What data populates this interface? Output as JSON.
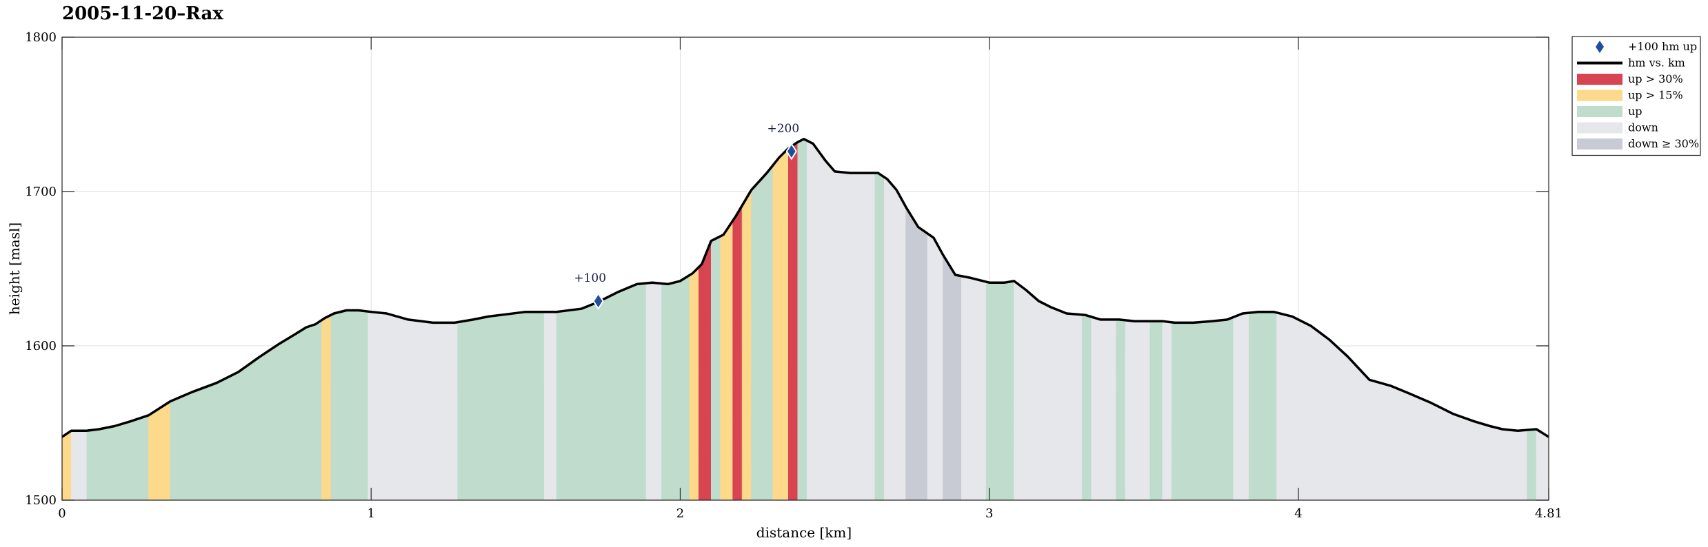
{
  "chart_data": {
    "type": "area",
    "title": "2005-11-20–Rax",
    "xlabel": "distance [km]",
    "ylabel": "height [masl]",
    "xlim": [
      0,
      4.81
    ],
    "ylim": [
      1500,
      1800
    ],
    "xticks": [
      0,
      1,
      2,
      3,
      4,
      4.81
    ],
    "xtick_labels": [
      "0",
      "1",
      "2",
      "3",
      "4",
      "4.81"
    ],
    "yticks": [
      1500,
      1600,
      1700,
      1800
    ],
    "ytick_labels": [
      "1500",
      "1600",
      "1700",
      "1800"
    ],
    "grid": true,
    "legend_position": "outside-top-right",
    "colors": {
      "line": "#000000",
      "marker": "#1f4e9e",
      "up_gt_30": "#d94452",
      "up_gt_15": "#fcd98b",
      "up": "#c0dccd",
      "down": "#e6e7eb",
      "down_ge_30": "#c8cbd3",
      "grid": "#dddddd"
    },
    "legend": [
      {
        "key": "marker",
        "label": "+100 hm up",
        "symbol": "diamond"
      },
      {
        "key": "line",
        "label": "hm vs. km",
        "symbol": "line"
      },
      {
        "key": "up_gt_30",
        "label": "up > 30%",
        "symbol": "patch"
      },
      {
        "key": "up_gt_15",
        "label": "up > 15%",
        "symbol": "patch"
      },
      {
        "key": "up",
        "label": "up",
        "symbol": "patch"
      },
      {
        "key": "down",
        "label": "down",
        "symbol": "patch"
      },
      {
        "key": "down_ge_30",
        "label": "down ≥ 30%",
        "symbol": "patch"
      }
    ],
    "profile": {
      "x": [
        0,
        0.03,
        0.08,
        0.12,
        0.17,
        0.22,
        0.28,
        0.35,
        0.42,
        0.5,
        0.57,
        0.64,
        0.7,
        0.75,
        0.79,
        0.82,
        0.85,
        0.88,
        0.92,
        0.96,
        1.0,
        1.05,
        1.12,
        1.2,
        1.27,
        1.33,
        1.38,
        1.42,
        1.5,
        1.55,
        1.6,
        1.68,
        1.73,
        1.8,
        1.86,
        1.91,
        1.96,
        2.0,
        2.04,
        2.07,
        2.1,
        2.14,
        2.18,
        2.23,
        2.28,
        2.32,
        2.35,
        2.38,
        2.4,
        2.43,
        2.47,
        2.5,
        2.55,
        2.6,
        2.64,
        2.67,
        2.7,
        2.73,
        2.77,
        2.82,
        2.85,
        2.89,
        2.94,
        3.0,
        3.05,
        3.08,
        3.12,
        3.16,
        3.2,
        3.25,
        3.31,
        3.36,
        3.42,
        3.47,
        3.52,
        3.56,
        3.6,
        3.66,
        3.72,
        3.77,
        3.82,
        3.87,
        3.92,
        3.98,
        4.04,
        4.1,
        4.16,
        4.23,
        4.3,
        4.36,
        4.43,
        4.5,
        4.57,
        4.62,
        4.66,
        4.71,
        4.77,
        4.81
      ],
      "y": [
        1541,
        1545,
        1545,
        1546,
        1548,
        1551,
        1555,
        1564,
        1570,
        1576,
        1583,
        1593,
        1601,
        1607,
        1612,
        1614,
        1618,
        1621,
        1623,
        1623,
        1622,
        1621,
        1617,
        1615,
        1615,
        1617,
        1619,
        1620,
        1622,
        1622,
        1622,
        1624,
        1628,
        1635,
        1640,
        1641,
        1640,
        1642,
        1647,
        1653,
        1668,
        1672,
        1684,
        1701,
        1712,
        1722,
        1728,
        1732,
        1734,
        1731,
        1720,
        1713,
        1712,
        1712,
        1712,
        1708,
        1701,
        1690,
        1677,
        1670,
        1659,
        1646,
        1644,
        1641,
        1641,
        1642,
        1636,
        1629,
        1625,
        1621,
        1620,
        1617,
        1617,
        1616,
        1616,
        1616,
        1615,
        1615,
        1616,
        1617,
        1621,
        1622,
        1622,
        1619,
        1613,
        1604,
        1593,
        1578,
        1574,
        1569,
        1563,
        1556,
        1551,
        1548,
        1546,
        1545,
        1546,
        1541
      ]
    },
    "segments": [
      {
        "from": 0.0,
        "to": 0.03,
        "class": "up_gt_15"
      },
      {
        "from": 0.03,
        "to": 0.08,
        "class": "down"
      },
      {
        "from": 0.08,
        "to": 0.28,
        "class": "up"
      },
      {
        "from": 0.28,
        "to": 0.35,
        "class": "up_gt_15"
      },
      {
        "from": 0.35,
        "to": 0.84,
        "class": "up"
      },
      {
        "from": 0.84,
        "to": 0.87,
        "class": "up_gt_15"
      },
      {
        "from": 0.87,
        "to": 0.99,
        "class": "up"
      },
      {
        "from": 0.99,
        "to": 1.28,
        "class": "down"
      },
      {
        "from": 1.28,
        "to": 1.56,
        "class": "up"
      },
      {
        "from": 1.56,
        "to": 1.6,
        "class": "down"
      },
      {
        "from": 1.6,
        "to": 1.89,
        "class": "up"
      },
      {
        "from": 1.89,
        "to": 1.94,
        "class": "down"
      },
      {
        "from": 1.94,
        "to": 2.03,
        "class": "up"
      },
      {
        "from": 2.03,
        "to": 2.06,
        "class": "up_gt_15"
      },
      {
        "from": 2.06,
        "to": 2.1,
        "class": "up_gt_30"
      },
      {
        "from": 2.1,
        "to": 2.13,
        "class": "up"
      },
      {
        "from": 2.13,
        "to": 2.17,
        "class": "up_gt_15"
      },
      {
        "from": 2.17,
        "to": 2.2,
        "class": "up_gt_30"
      },
      {
        "from": 2.2,
        "to": 2.23,
        "class": "up_gt_15"
      },
      {
        "from": 2.23,
        "to": 2.3,
        "class": "up"
      },
      {
        "from": 2.3,
        "to": 2.35,
        "class": "up_gt_15"
      },
      {
        "from": 2.35,
        "to": 2.38,
        "class": "up_gt_30"
      },
      {
        "from": 2.38,
        "to": 2.41,
        "class": "up"
      },
      {
        "from": 2.41,
        "to": 2.63,
        "class": "down"
      },
      {
        "from": 2.63,
        "to": 2.66,
        "class": "up"
      },
      {
        "from": 2.66,
        "to": 2.73,
        "class": "down"
      },
      {
        "from": 2.73,
        "to": 2.8,
        "class": "down_ge_30"
      },
      {
        "from": 2.8,
        "to": 2.85,
        "class": "down"
      },
      {
        "from": 2.85,
        "to": 2.91,
        "class": "down_ge_30"
      },
      {
        "from": 2.91,
        "to": 2.99,
        "class": "down"
      },
      {
        "from": 2.99,
        "to": 3.08,
        "class": "up"
      },
      {
        "from": 3.08,
        "to": 3.3,
        "class": "down"
      },
      {
        "from": 3.3,
        "to": 3.33,
        "class": "up"
      },
      {
        "from": 3.33,
        "to": 3.41,
        "class": "down"
      },
      {
        "from": 3.41,
        "to": 3.44,
        "class": "up"
      },
      {
        "from": 3.44,
        "to": 3.52,
        "class": "down"
      },
      {
        "from": 3.52,
        "to": 3.56,
        "class": "up"
      },
      {
        "from": 3.56,
        "to": 3.59,
        "class": "down"
      },
      {
        "from": 3.59,
        "to": 3.79,
        "class": "up"
      },
      {
        "from": 3.79,
        "to": 3.84,
        "class": "down"
      },
      {
        "from": 3.84,
        "to": 3.93,
        "class": "up"
      },
      {
        "from": 3.93,
        "to": 4.74,
        "class": "down"
      },
      {
        "from": 4.74,
        "to": 4.77,
        "class": "up"
      },
      {
        "from": 4.77,
        "to": 4.81,
        "class": "down"
      }
    ],
    "markers": [
      {
        "label": "+100",
        "x": 1.735,
        "y": 1629
      },
      {
        "label": "+200",
        "x": 2.36,
        "y": 1726
      }
    ]
  }
}
